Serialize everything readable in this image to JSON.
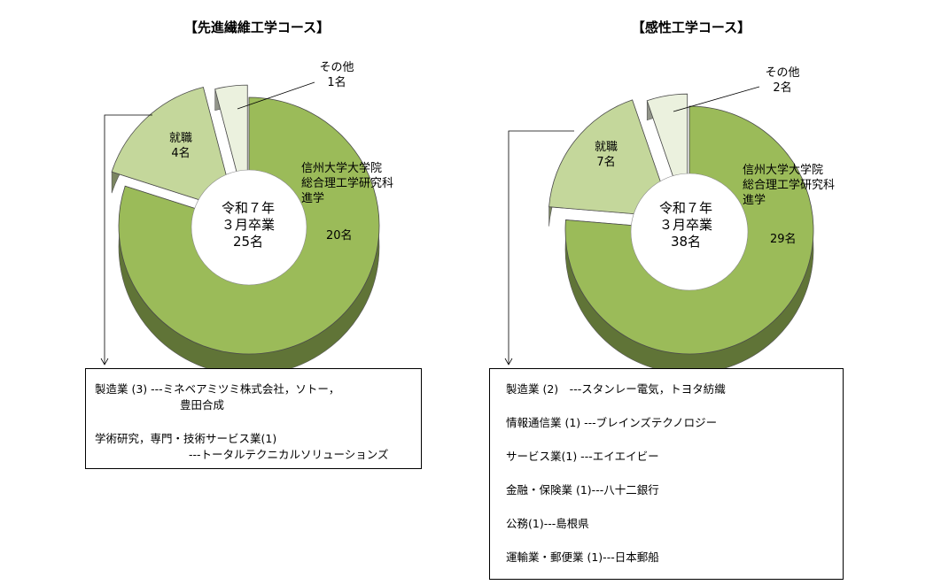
{
  "chart_data": [
    {
      "type": "pie",
      "title": "【先進繊維工学コース】",
      "center_label": [
        "令和７年",
        "３月卒業",
        "25名"
      ],
      "slices": [
        {
          "label": [
            "信州大学大学院",
            "総合理工学研究科",
            "進学"
          ],
          "value_label": "20名",
          "value": 20,
          "color": "#9bbb59"
        },
        {
          "label": [
            "就職",
            "4名"
          ],
          "value": 4,
          "color": "#c4d79b"
        },
        {
          "label": [
            "その他",
            "1名"
          ],
          "value": 1,
          "color": "#ebf1de"
        }
      ],
      "breakdown": [
        "製造業 (3) ---ミネベアミツミ株式会社，ソトー，",
        "豊田合成",
        "学術研究，専門・技術サービス業(1)",
        "---トータルテクニカルソリューションズ"
      ]
    },
    {
      "type": "pie",
      "title": "【感性工学コース】",
      "center_label": [
        "令和７年",
        "３月卒業",
        "38名"
      ],
      "slices": [
        {
          "label": [
            "信州大学大学院",
            "総合理工学研究科",
            "進学"
          ],
          "value_label": "29名",
          "value": 29,
          "color": "#9bbb59"
        },
        {
          "label": [
            "就職",
            "7名"
          ],
          "value": 7,
          "color": "#c4d79b"
        },
        {
          "label": [
            "その他",
            "2名"
          ],
          "value": 2,
          "color": "#ebf1de"
        }
      ],
      "breakdown": [
        "製造業 (2)　---スタンレー電気，トヨタ紡織",
        "情報通信業 (1) ---ブレインズテクノロジー",
        "サービス業(1) ---エイエイビー",
        "金融・保険業 (1)---八十二銀行",
        "公務(1)---島根県",
        "運輸業・郵便業 (1)---日本郵船"
      ]
    }
  ]
}
